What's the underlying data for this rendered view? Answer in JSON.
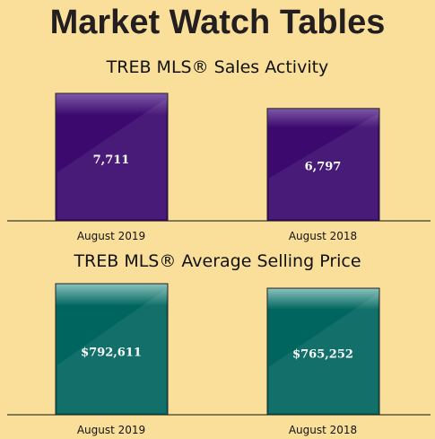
{
  "page": {
    "title": "Market Watch Tables"
  },
  "chart_data": [
    {
      "type": "bar",
      "title": "TREB MLS® Sales Activity",
      "categories": [
        "August 2019",
        "August 2018"
      ],
      "values": [
        7711,
        6797
      ],
      "value_labels": [
        "7,711",
        "6,797"
      ],
      "ylim": [
        0,
        7711
      ],
      "grid": false,
      "colors": {
        "bar": "#3c0a6e",
        "bar_top": "#7d5aa8"
      }
    },
    {
      "type": "bar",
      "title": "TREB MLS® Average Selling Price",
      "categories": [
        "August 2019",
        "August 2018"
      ],
      "values": [
        792611,
        765252
      ],
      "value_labels": [
        "$792,611",
        "$765,252"
      ],
      "ylim": [
        0,
        792611
      ],
      "grid": false,
      "colors": {
        "bar": "#00655f",
        "bar_top": "#8cc3bd"
      }
    }
  ]
}
